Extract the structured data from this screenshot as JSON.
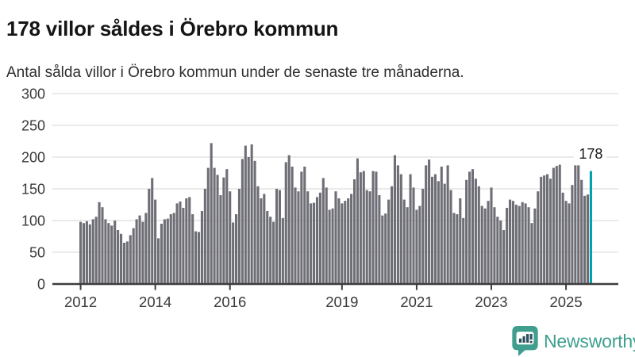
{
  "header": {
    "title": "178 villor såldes i Örebro kommun",
    "subtitle": "Antal sålda villor i Örebro kommun under de senaste tre månaderna."
  },
  "chart_data": {
    "type": "bar",
    "title": "178 villor såldes i Örebro kommun",
    "subtitle": "Antal sålda villor i Örebro kommun under de senaste tre månaderna.",
    "unit": "sålda villor (rullande 3 månader)",
    "frequency": "monthly",
    "x_start": "2012-01",
    "x_end": "2025-09",
    "ylim": [
      0,
      300
    ],
    "yticks": [
      0,
      50,
      100,
      150,
      200,
      250,
      300
    ],
    "xticks": [
      2012,
      2014,
      2016,
      2019,
      2021,
      2023,
      2025
    ],
    "grid": true,
    "values": [
      98,
      96,
      99,
      94,
      102,
      106,
      129,
      121,
      102,
      96,
      92,
      100,
      85,
      79,
      65,
      67,
      77,
      88,
      102,
      108,
      98,
      112,
      150,
      167,
      133,
      72,
      95,
      102,
      103,
      110,
      112,
      127,
      130,
      120,
      135,
      137,
      110,
      83,
      82,
      115,
      150,
      183,
      222,
      183,
      172,
      140,
      168,
      181,
      146,
      97,
      110,
      150,
      197,
      218,
      200,
      220,
      194,
      154,
      135,
      142,
      115,
      106,
      98,
      150,
      148,
      104,
      192,
      203,
      185,
      152,
      146,
      177,
      185,
      146,
      127,
      128,
      137,
      144,
      167,
      152,
      117,
      119,
      146,
      135,
      127,
      131,
      135,
      142,
      165,
      198,
      176,
      178,
      148,
      146,
      178,
      177,
      140,
      108,
      111,
      133,
      154,
      203,
      187,
      173,
      133,
      121,
      173,
      152,
      117,
      123,
      150,
      187,
      196,
      169,
      173,
      162,
      185,
      158,
      187,
      148,
      112,
      110,
      135,
      104,
      164,
      177,
      181,
      166,
      154,
      123,
      119,
      131,
      152,
      121,
      106,
      100,
      85,
      120,
      133,
      131,
      125,
      123,
      129,
      127,
      121,
      96,
      119,
      146,
      169,
      171,
      173,
      166,
      183,
      186,
      188,
      144,
      131,
      127,
      156,
      187,
      187,
      164,
      139,
      141,
      178
    ],
    "highlight": {
      "index": 164,
      "label": "178",
      "period": "2025-09"
    },
    "legend": "none",
    "colors": {
      "bar": "#6e6e76",
      "highlight": "#00a2ac",
      "grid": "#e4e4e4",
      "axis": "#3d3d3d",
      "tick_text": "#3a3a3a",
      "annotation_text": "#1a1a1a"
    }
  },
  "footer": {
    "brand": "Newsworthy",
    "brand_color": "#3f9e8e",
    "logo_icon": "newsworthy-speech-bubble-bar-chart-icon"
  }
}
